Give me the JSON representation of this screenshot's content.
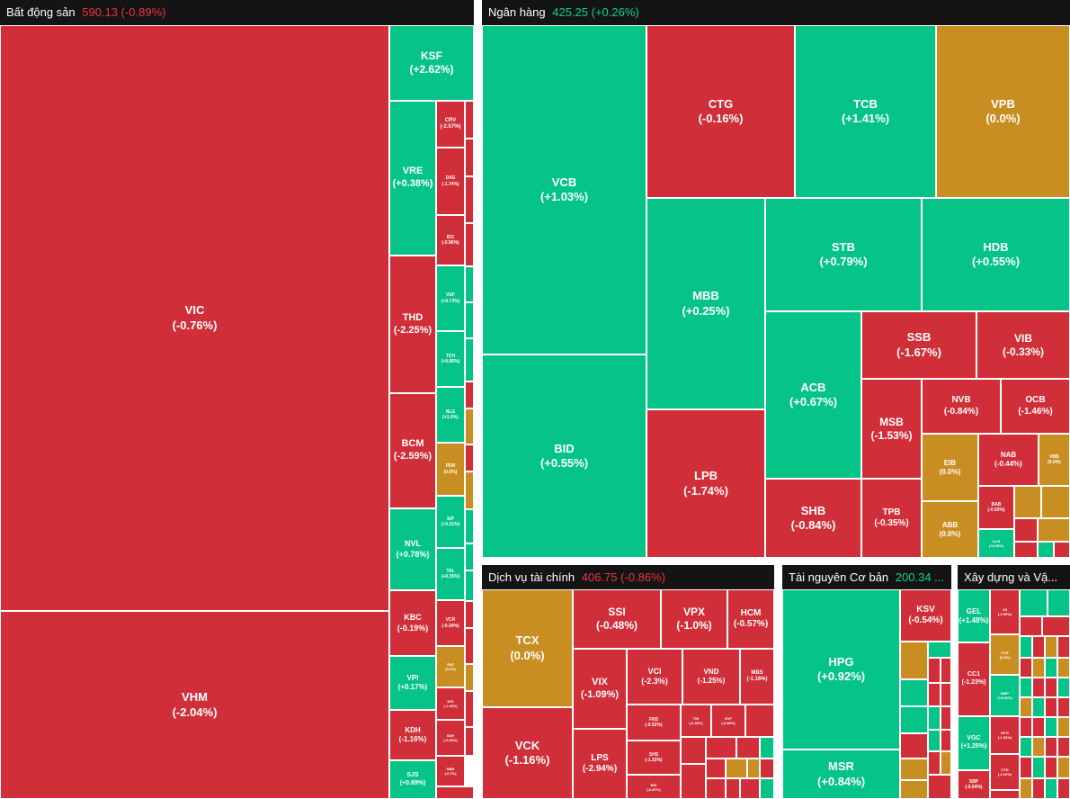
{
  "colors": {
    "down": "#d02f3a",
    "up": "#06c487",
    "flat": "#c98e22",
    "header_bg": "#141414",
    "header_text": "#ffffff",
    "down_text": "#ef3340",
    "up_text": "#10d18f"
  },
  "sectors": [
    {
      "id": "bds",
      "name": "Bất động sản",
      "value": "590.13",
      "change": "(-0.89%)",
      "dir": "down",
      "tiles": [
        {
          "ticker": "VIC",
          "change": "(-0.76%)",
          "dir": "down"
        },
        {
          "ticker": "VHM",
          "change": "(-2.04%)",
          "dir": "down"
        },
        {
          "ticker": "KSF",
          "change": "(+2.62%)",
          "dir": "up"
        },
        {
          "ticker": "VRE",
          "change": "(+0.38%)",
          "dir": "up"
        },
        {
          "ticker": "THD",
          "change": "(-2.25%)",
          "dir": "down"
        },
        {
          "ticker": "BCM",
          "change": "(-2.59%)",
          "dir": "down"
        },
        {
          "ticker": "NVL",
          "change": "(+0.78%)",
          "dir": "up"
        },
        {
          "ticker": "KBC",
          "change": "(-0.19%)",
          "dir": "down"
        },
        {
          "ticker": "VPI",
          "change": "(+0.17%)",
          "dir": "up"
        },
        {
          "ticker": "KDH",
          "change": "(-1.16%)",
          "dir": "down"
        },
        {
          "ticker": "SJS",
          "change": "(+0.89%)",
          "dir": "up"
        },
        {
          "ticker": "CRV",
          "change": "(-2.57%)",
          "dir": "down"
        },
        {
          "ticker": "DXG",
          "change": "(-1.74%)",
          "dir": "down"
        },
        {
          "ticker": "IDC",
          "change": "(-0.96%)",
          "dir": "down"
        },
        {
          "ticker": "VEF",
          "change": "(+0.73%)",
          "dir": "up"
        },
        {
          "ticker": "TCH",
          "change": "(+0.85%)",
          "dir": "up"
        },
        {
          "ticker": "NLG",
          "change": "(+1.0%)",
          "dir": "up"
        },
        {
          "ticker": "PDR",
          "change": "(0.0%)",
          "dir": "flat"
        },
        {
          "ticker": "SIP",
          "change": "(+0.21%)",
          "dir": "up"
        },
        {
          "ticker": "TAL",
          "change": "(+0.35%)",
          "dir": "up"
        },
        {
          "ticker": "VCR",
          "change": "(-0.34%)",
          "dir": "down"
        },
        {
          "ticker": "SNZ",
          "change": "(0.0%)",
          "dir": "flat"
        },
        {
          "ticker": "DIG",
          "change": "(-1.44%)",
          "dir": "down"
        },
        {
          "ticker": "SSH",
          "change": "(-0.63%)",
          "dir": "down"
        },
        {
          "ticker": "NBB",
          "change": "(-0.7%)",
          "dir": "down"
        }
      ]
    },
    {
      "id": "nh",
      "name": "Ngân hàng",
      "value": "425.25",
      "change": "(+0.26%)",
      "dir": "up",
      "tiles": [
        {
          "ticker": "VCB",
          "change": "(+1.03%)",
          "dir": "up"
        },
        {
          "ticker": "BID",
          "change": "(+0.55%)",
          "dir": "up"
        },
        {
          "ticker": "CTG",
          "change": "(-0.16%)",
          "dir": "down"
        },
        {
          "ticker": "TCB",
          "change": "(+1.41%)",
          "dir": "up"
        },
        {
          "ticker": "VPB",
          "change": "(0.0%)",
          "dir": "flat"
        },
        {
          "ticker": "MBB",
          "change": "(+0.25%)",
          "dir": "up"
        },
        {
          "ticker": "STB",
          "change": "(+0.79%)",
          "dir": "up"
        },
        {
          "ticker": "HDB",
          "change": "(+0.55%)",
          "dir": "up"
        },
        {
          "ticker": "LPB",
          "change": "(-1.74%)",
          "dir": "down"
        },
        {
          "ticker": "ACB",
          "change": "(+0.67%)",
          "dir": "up"
        },
        {
          "ticker": "SSB",
          "change": "(-1.67%)",
          "dir": "down"
        },
        {
          "ticker": "VIB",
          "change": "(-0.33%)",
          "dir": "down"
        },
        {
          "ticker": "MSB",
          "change": "(-1.53%)",
          "dir": "down"
        },
        {
          "ticker": "NVB",
          "change": "(-0.84%)",
          "dir": "down"
        },
        {
          "ticker": "OCB",
          "change": "(-1.46%)",
          "dir": "down"
        },
        {
          "ticker": "SHB",
          "change": "(-0.84%)",
          "dir": "down"
        },
        {
          "ticker": "TPB",
          "change": "(-0.35%)",
          "dir": "down"
        },
        {
          "ticker": "EIB",
          "change": "(0.0%)",
          "dir": "flat"
        },
        {
          "ticker": "NAB",
          "change": "(-0.44%)",
          "dir": "down"
        },
        {
          "ticker": "VBB",
          "change": "(0.0%)",
          "dir": "flat"
        },
        {
          "ticker": "ABB",
          "change": "(0.0%)",
          "dir": "flat"
        },
        {
          "ticker": "BAB",
          "change": "(-0.93%)",
          "dir": "down"
        },
        {
          "ticker": "KLB",
          "change": "(+0.28%)",
          "dir": "up"
        }
      ]
    },
    {
      "id": "dvtc",
      "name": "Dịch vụ tài chính",
      "value": "406.75",
      "change": "(-0.86%)",
      "dir": "down",
      "tiles": [
        {
          "ticker": "TCX",
          "change": "(0.0%)",
          "dir": "flat"
        },
        {
          "ticker": "VCK",
          "change": "(-1.16%)",
          "dir": "down"
        },
        {
          "ticker": "SSI",
          "change": "(-0.48%)",
          "dir": "down"
        },
        {
          "ticker": "VPX",
          "change": "(-1.0%)",
          "dir": "down"
        },
        {
          "ticker": "HCM",
          "change": "(-0.57%)",
          "dir": "down"
        },
        {
          "ticker": "VIX",
          "change": "(-1.09%)",
          "dir": "down"
        },
        {
          "ticker": "VCI",
          "change": "(-2.3%)",
          "dir": "down"
        },
        {
          "ticker": "VND",
          "change": "(-1.25%)",
          "dir": "down"
        },
        {
          "ticker": "MBS",
          "change": "(-1.16%)",
          "dir": "down"
        },
        {
          "ticker": "LPS",
          "change": "(-2.94%)",
          "dir": "down"
        },
        {
          "ticker": "FNS",
          "change": "(-0.52%)",
          "dir": "down"
        },
        {
          "ticker": "TIN",
          "change": "(-0.46%)",
          "dir": "down"
        },
        {
          "ticker": "EVF",
          "change": "(-0.88%)",
          "dir": "down"
        },
        {
          "ticker": "SHS",
          "change": "(-1.33%)",
          "dir": "down"
        },
        {
          "ticker": "BSI",
          "change": "(-0.67%)",
          "dir": "down"
        }
      ]
    },
    {
      "id": "tncb",
      "name": "Tài nguyên Cơ bản",
      "value": "200.34 ...",
      "change": "",
      "dir": "up",
      "tiles": [
        {
          "ticker": "HPG",
          "change": "(+0.92%)",
          "dir": "up"
        },
        {
          "ticker": "MSR",
          "change": "(+0.84%)",
          "dir": "up"
        },
        {
          "ticker": "KSV",
          "change": "(-0.54%)",
          "dir": "down"
        }
      ]
    },
    {
      "id": "xd",
      "name": "Xây dựng và Vậ...",
      "value": "",
      "change": "",
      "dir": "down",
      "tiles": [
        {
          "ticker": "GEL",
          "change": "(+1.48%)",
          "dir": "up"
        },
        {
          "ticker": "CC1",
          "change": "(-1.23%)",
          "dir": "down"
        },
        {
          "ticker": "VGC",
          "change": "(+1.25%)",
          "dir": "up"
        },
        {
          "ticker": "SBP",
          "change": "(-0.64%)",
          "dir": "down"
        },
        {
          "ticker": "CII",
          "change": "(-0.55%)",
          "dir": "down"
        },
        {
          "ticker": "CTR",
          "change": "(0.0%)",
          "dir": "flat"
        },
        {
          "ticker": "BMP",
          "change": "(+0.62%)",
          "dir": "up"
        },
        {
          "ticker": "DPG",
          "change": "(-1.52%)",
          "dir": "down"
        },
        {
          "ticker": "CTD",
          "change": "(-1.02%)",
          "dir": "down"
        }
      ]
    }
  ]
}
